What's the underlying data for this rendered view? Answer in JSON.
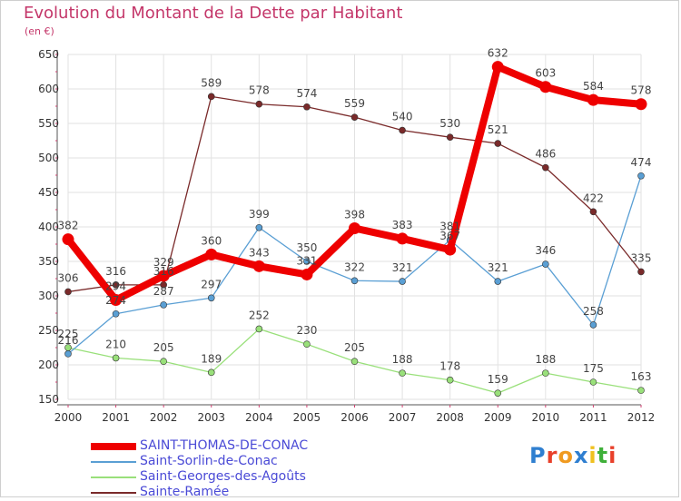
{
  "header": {
    "title": "Evolution du Montant de la Dette par Habitant",
    "unit": "(en €)"
  },
  "logo": {
    "text": "Proxiti",
    "letter_colors": [
      "#2f7fd0",
      "#e8402a",
      "#f09a1f",
      "#2f7fd0",
      "#f0c020",
      "#3fb03a",
      "#e8402a"
    ]
  },
  "chart_data": {
    "type": "line",
    "title": "Evolution du Montant de la Dette par Habitant",
    "ylabel": "(en €)",
    "xlabel": "",
    "x": [
      "2000",
      "2001",
      "2002",
      "2003",
      "2004",
      "2005",
      "2006",
      "2007",
      "2008",
      "2009",
      "2010",
      "2011",
      "2012"
    ],
    "ylim": [
      150,
      650
    ],
    "yticks": [
      "150",
      "200",
      "250",
      "300",
      "350",
      "400",
      "450",
      "500",
      "550",
      "600",
      "650"
    ],
    "grid": true,
    "legend_position": "bottom-left",
    "series": [
      {
        "name": "SAINT-THOMAS-DE-CONAC",
        "color": "#ee0000",
        "values": [
          382,
          294,
          329,
          360,
          343,
          331,
          398,
          383,
          367,
          632,
          603,
          584,
          578
        ]
      },
      {
        "name": "Saint-Sorlin-de-Conac",
        "color": "#5a9fd4",
        "values": [
          216,
          274,
          287,
          297,
          399,
          350,
          322,
          321,
          381,
          321,
          346,
          258,
          474
        ]
      },
      {
        "name": "Saint-Georges-des-Agoûts",
        "color": "#99e07a",
        "values": [
          225,
          210,
          205,
          189,
          252,
          230,
          205,
          188,
          178,
          159,
          188,
          175,
          163
        ]
      },
      {
        "name": "Sainte-Ramée",
        "color": "#7a2a2a",
        "values": [
          306,
          316,
          316,
          589,
          578,
          574,
          559,
          540,
          530,
          521,
          486,
          422,
          335
        ]
      }
    ],
    "data_labels": [
      {
        "series": 0,
        "labels": [
          "382",
          "294",
          "329",
          "360",
          "343",
          "331",
          "398",
          "383",
          "367",
          "632",
          "603",
          "584",
          "578"
        ]
      },
      {
        "series": 1,
        "labels": [
          "216",
          "274",
          "287",
          "297",
          "399",
          "350",
          "322",
          "321",
          "381",
          "321",
          "346",
          "258",
          "474"
        ]
      },
      {
        "series": 2,
        "labels": [
          "225",
          "210",
          "205",
          "189",
          "252",
          "230",
          "205",
          "188",
          "178",
          "159",
          "188",
          "175",
          "163"
        ]
      },
      {
        "series": 3,
        "labels": [
          "306",
          "316",
          "316",
          "589",
          "578",
          "574",
          "559",
          "540",
          "530",
          "521",
          "486",
          "422",
          "335"
        ]
      }
    ]
  }
}
